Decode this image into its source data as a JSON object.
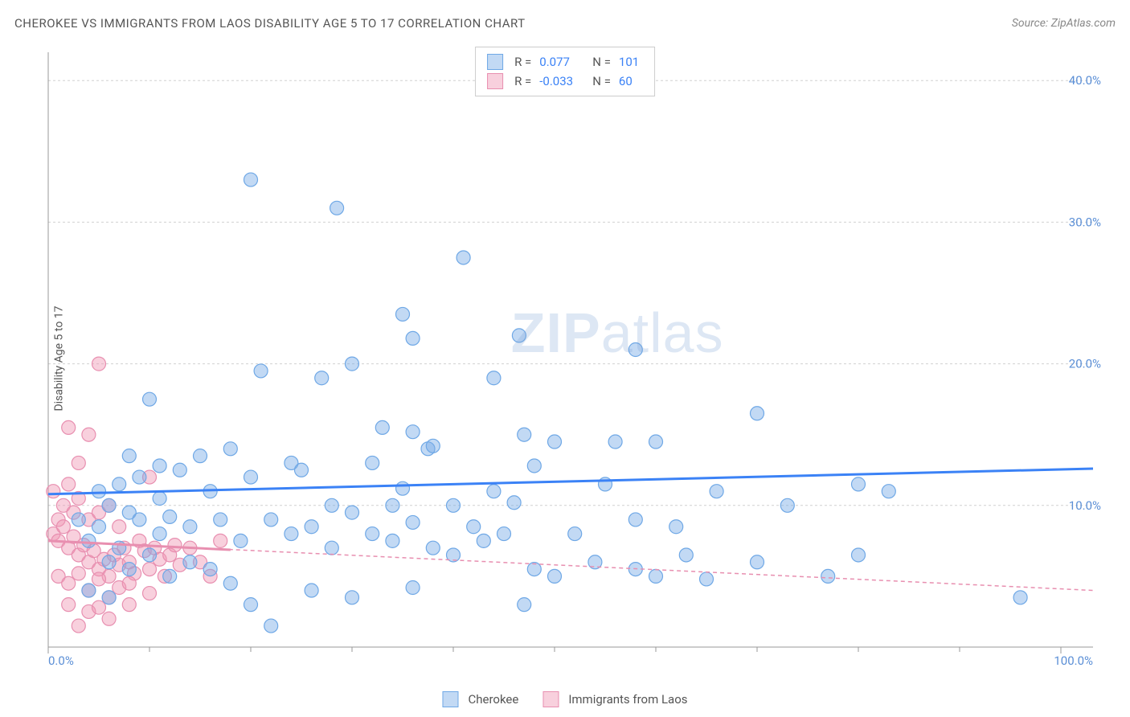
{
  "title": "CHEROKEE VS IMMIGRANTS FROM LAOS DISABILITY AGE 5 TO 17 CORRELATION CHART",
  "source": "Source: ZipAtlas.com",
  "ylabel": "Disability Age 5 to 17",
  "watermark_a": "ZIP",
  "watermark_b": "atlas",
  "xlim": [
    0,
    100
  ],
  "ylim": [
    0,
    42
  ],
  "x_ticks": [
    0,
    100
  ],
  "x_tick_labels": [
    "0.0%",
    "100.0%"
  ],
  "x_minor_ticks": [
    10,
    20,
    30,
    40,
    50,
    60,
    70,
    80,
    90
  ],
  "y_ticks": [
    10,
    20,
    30,
    40
  ],
  "y_tick_labels": [
    "10.0%",
    "20.0%",
    "30.0%",
    "40.0%"
  ],
  "grid_color": "#d0d0d0",
  "axis_color": "#999999",
  "tick_label_color": "#5b8fd6",
  "background_color": "#ffffff",
  "series": [
    {
      "name": "Cherokee",
      "fill": "rgba(120,170,230,0.45)",
      "stroke": "#6fa8e6",
      "line_color": "#3b82f6",
      "line_dash": "",
      "trend": {
        "y_at_x0": 10.8,
        "y_at_x100": 12.6
      },
      "R": "0.077",
      "N": "101",
      "points": [
        [
          20,
          33
        ],
        [
          28.5,
          31
        ],
        [
          41,
          27.5
        ],
        [
          35,
          23.5
        ],
        [
          36,
          21.8
        ],
        [
          46.5,
          22
        ],
        [
          30,
          20
        ],
        [
          27,
          19
        ],
        [
          21,
          19.5
        ],
        [
          44,
          19
        ],
        [
          58,
          21
        ],
        [
          10,
          17.5
        ],
        [
          18,
          14
        ],
        [
          15,
          13.5
        ],
        [
          24,
          13
        ],
        [
          33,
          15.5
        ],
        [
          36,
          15.2
        ],
        [
          37.5,
          14
        ],
        [
          38,
          14.2
        ],
        [
          47,
          15
        ],
        [
          50,
          14.5
        ],
        [
          56,
          14.5
        ],
        [
          60,
          14.5
        ],
        [
          70,
          16.5
        ],
        [
          8,
          13.5
        ],
        [
          11,
          12.8
        ],
        [
          13,
          12.5
        ],
        [
          16,
          11
        ],
        [
          20,
          12
        ],
        [
          25,
          12.5
        ],
        [
          28,
          10
        ],
        [
          32,
          13
        ],
        [
          34,
          10
        ],
        [
          35,
          11.2
        ],
        [
          40,
          10
        ],
        [
          42,
          8.5
        ],
        [
          44,
          11
        ],
        [
          46,
          10.2
        ],
        [
          48,
          12.8
        ],
        [
          52,
          8
        ],
        [
          55,
          11.5
        ],
        [
          58,
          9
        ],
        [
          62,
          8.5
        ],
        [
          66,
          11
        ],
        [
          80,
          11.5
        ],
        [
          83,
          11
        ],
        [
          6,
          10
        ],
        [
          8,
          9.5
        ],
        [
          9,
          9
        ],
        [
          11,
          8
        ],
        [
          12,
          9.2
        ],
        [
          14,
          8.5
        ],
        [
          17,
          9
        ],
        [
          19,
          7.5
        ],
        [
          22,
          9
        ],
        [
          24,
          8
        ],
        [
          26,
          8.5
        ],
        [
          28,
          7
        ],
        [
          30,
          9.5
        ],
        [
          32,
          8
        ],
        [
          34,
          7.5
        ],
        [
          36,
          8.8
        ],
        [
          38,
          7
        ],
        [
          40,
          6.5
        ],
        [
          43,
          7.5
        ],
        [
          45,
          8
        ],
        [
          48,
          5.5
        ],
        [
          50,
          5
        ],
        [
          54,
          6
        ],
        [
          58,
          5.5
        ],
        [
          60,
          5
        ],
        [
          63,
          6.5
        ],
        [
          65,
          4.8
        ],
        [
          70,
          6
        ],
        [
          73,
          10
        ],
        [
          77,
          5
        ],
        [
          80,
          6.5
        ],
        [
          96,
          3.5
        ],
        [
          4,
          7.5
        ],
        [
          5,
          8.5
        ],
        [
          6,
          6
        ],
        [
          7,
          7
        ],
        [
          8,
          5.5
        ],
        [
          10,
          6.5
        ],
        [
          12,
          5
        ],
        [
          14,
          6
        ],
        [
          16,
          5.5
        ],
        [
          18,
          4.5
        ],
        [
          20,
          3
        ],
        [
          22,
          1.5
        ],
        [
          26,
          4
        ],
        [
          30,
          3.5
        ],
        [
          36,
          4.2
        ],
        [
          47,
          3
        ],
        [
          4,
          4
        ],
        [
          6,
          3.5
        ],
        [
          3,
          9
        ],
        [
          5,
          11
        ],
        [
          7,
          11.5
        ],
        [
          9,
          12
        ],
        [
          11,
          10.5
        ]
      ]
    },
    {
      "name": "Immigrants from Laos",
      "fill": "rgba(240,150,180,0.45)",
      "stroke": "#e88fb0",
      "line_color": "#e88fb0",
      "line_dash": "5,4",
      "trend": {
        "y_at_x0": 7.5,
        "y_at_x100": 4.0
      },
      "R": "-0.033",
      "N": "60",
      "points": [
        [
          5,
          20
        ],
        [
          2,
          15.5
        ],
        [
          4,
          15
        ],
        [
          3,
          13
        ],
        [
          2,
          11.5
        ],
        [
          0.5,
          11
        ],
        [
          1,
          9
        ],
        [
          1.5,
          10
        ],
        [
          2.5,
          9.5
        ],
        [
          3,
          10.5
        ],
        [
          4,
          9
        ],
        [
          5,
          9.5
        ],
        [
          6,
          10
        ],
        [
          7,
          8.5
        ],
        [
          0.5,
          8
        ],
        [
          1,
          7.5
        ],
        [
          1.5,
          8.5
        ],
        [
          2,
          7
        ],
        [
          2.5,
          7.8
        ],
        [
          3,
          6.5
        ],
        [
          3.5,
          7.2
        ],
        [
          4,
          6
        ],
        [
          4.5,
          6.8
        ],
        [
          5,
          5.5
        ],
        [
          5.5,
          6.2
        ],
        [
          6,
          5
        ],
        [
          6.5,
          6.5
        ],
        [
          7,
          5.8
        ],
        [
          7.5,
          7
        ],
        [
          8,
          6
        ],
        [
          8.5,
          5.2
        ],
        [
          9,
          7.5
        ],
        [
          9.5,
          6.8
        ],
        [
          10,
          5.5
        ],
        [
          10.5,
          7
        ],
        [
          11,
          6.2
        ],
        [
          11.5,
          5
        ],
        [
          12,
          6.5
        ],
        [
          12.5,
          7.2
        ],
        [
          13,
          5.8
        ],
        [
          1,
          5
        ],
        [
          2,
          4.5
        ],
        [
          3,
          5.2
        ],
        [
          4,
          4
        ],
        [
          5,
          4.8
        ],
        [
          6,
          3.5
        ],
        [
          7,
          4.2
        ],
        [
          8,
          3
        ],
        [
          2,
          3
        ],
        [
          4,
          2.5
        ],
        [
          6,
          2
        ],
        [
          3,
          1.5
        ],
        [
          5,
          2.8
        ],
        [
          8,
          4.5
        ],
        [
          10,
          3.8
        ],
        [
          14,
          7
        ],
        [
          15,
          6
        ],
        [
          16,
          5
        ],
        [
          17,
          7.5
        ],
        [
          10,
          12
        ]
      ]
    }
  ],
  "legend": {
    "series1_label": "Cherokee",
    "series2_label": "Immigrants from Laos"
  },
  "statbox": {
    "r_label": "R =",
    "n_label": "N ="
  },
  "marker_radius": 8.5,
  "marker_stroke_width": 1.2,
  "trend_line_width_solid": 3,
  "trend_line_width_dash": 1.5
}
